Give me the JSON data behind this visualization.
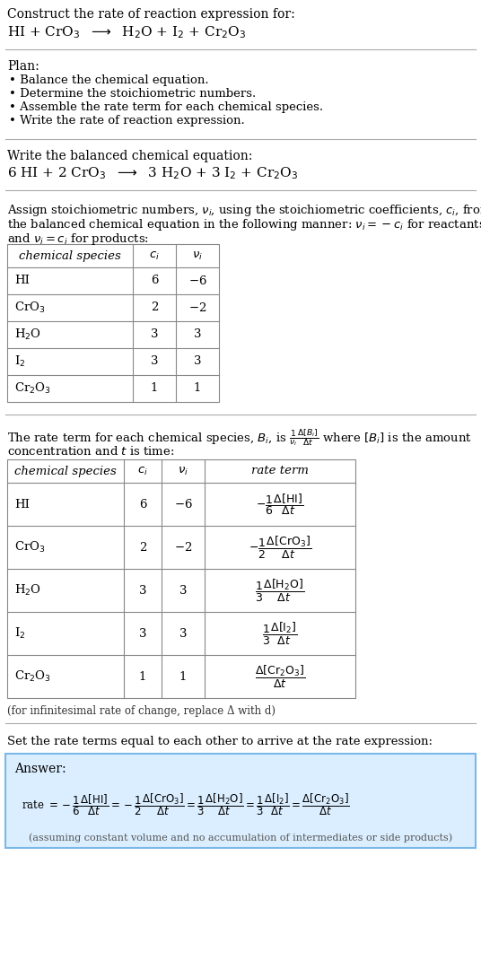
{
  "title_line1": "Construct the rate of reaction expression for:",
  "plan_title": "Plan:",
  "plan_items": [
    "• Balance the chemical equation.",
    "• Determine the stoichiometric numbers.",
    "• Assemble the rate term for each chemical species.",
    "• Write the rate of reaction expression."
  ],
  "balanced_label": "Write the balanced chemical equation:",
  "table1_headers": [
    "chemical species",
    "c_i",
    "v_i"
  ],
  "table2_headers": [
    "chemical species",
    "c_i",
    "v_i",
    "rate term"
  ],
  "infinitesimal_note": "(for infinitesimal rate of change, replace Δ with d)",
  "set_equal_label": "Set the rate terms equal to each other to arrive at the rate expression:",
  "answer_label": "Answer:",
  "answer_bg_color": "#dbeeff",
  "answer_border_color": "#7ab8e8",
  "answer_note": "(assuming constant volume and no accumulation of intermediates or side products)",
  "bg_color": "#ffffff",
  "separator_color": "#aaaaaa",
  "table_border_color": "#888888",
  "species_latex": [
    "HI",
    "CrO$_3$",
    "H$_2$O",
    "I$_2$",
    "Cr$_2$O$_3$"
  ],
  "ci_vals": [
    "6",
    "2",
    "3",
    "3",
    "1"
  ],
  "nu_vals": [
    "-6",
    "-2",
    "3",
    "3",
    "1"
  ]
}
